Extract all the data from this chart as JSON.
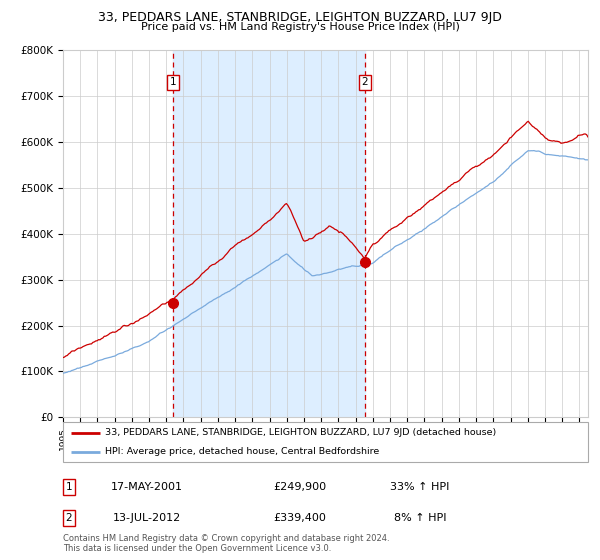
{
  "title": "33, PEDDARS LANE, STANBRIDGE, LEIGHTON BUZZARD, LU7 9JD",
  "subtitle": "Price paid vs. HM Land Registry's House Price Index (HPI)",
  "ylim": [
    0,
    800000
  ],
  "yticks": [
    0,
    100000,
    200000,
    300000,
    400000,
    500000,
    600000,
    700000,
    800000
  ],
  "ytick_labels": [
    "£0",
    "£100K",
    "£200K",
    "£300K",
    "£400K",
    "£500K",
    "£600K",
    "£700K",
    "£800K"
  ],
  "sale1_date": 2001.38,
  "sale1_price": 249900,
  "sale1_text": "17-MAY-2001",
  "sale1_price_text": "£249,900",
  "sale1_hpi_text": "33% ↑ HPI",
  "sale2_date": 2012.54,
  "sale2_price": 339400,
  "sale2_text": "13-JUL-2012",
  "sale2_price_text": "£339,400",
  "sale2_hpi_text": "8% ↑ HPI",
  "line_color_red": "#cc0000",
  "line_color_blue": "#7aaadd",
  "shading_color": "#ddeeff",
  "background_color": "#ffffff",
  "grid_color": "#cccccc",
  "footnote1": "Contains HM Land Registry data © Crown copyright and database right 2024.",
  "footnote2": "This data is licensed under the Open Government Licence v3.0.",
  "legend_entry1": "33, PEDDARS LANE, STANBRIDGE, LEIGHTON BUZZARD, LU7 9JD (detached house)",
  "legend_entry2": "HPI: Average price, detached house, Central Bedfordshire"
}
